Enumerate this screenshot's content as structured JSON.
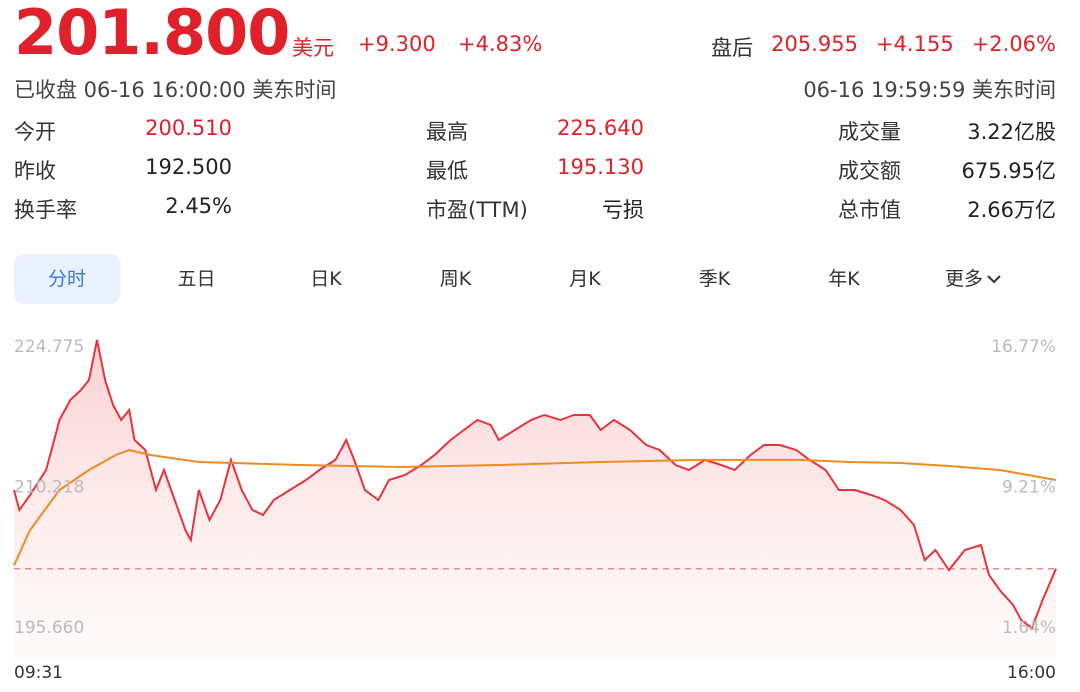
{
  "header": {
    "price": "201.800",
    "currency": "美元",
    "change": "+9.300",
    "change_pct": "+4.83%",
    "status": "已收盘 06-16 16:00:00 美东时间",
    "after_hours": {
      "label": "盘后",
      "price": "205.955",
      "change": "+4.155",
      "change_pct": "+2.06%",
      "time": "06-16 19:59:59 美东时间"
    }
  },
  "stats": [
    [
      {
        "label": "今开",
        "value": "200.510"
      },
      {
        "label": "最高",
        "value": "225.640"
      },
      {
        "label": "成交量",
        "value": "3.22亿股"
      }
    ],
    [
      {
        "label": "昨收",
        "value": "192.500"
      },
      {
        "label": "最低",
        "value": "195.130"
      },
      {
        "label": "成交额",
        "value": "675.95亿"
      }
    ],
    [
      {
        "label": "换手率",
        "value": "2.45%"
      },
      {
        "label": "市盈(TTM)",
        "value": "亏损"
      },
      {
        "label": "总市值",
        "value": "2.66万亿"
      }
    ]
  ],
  "tabs": [
    "分时",
    "五日",
    "日K",
    "周K",
    "月K",
    "季K",
    "年K",
    "更多"
  ],
  "chart_data": {
    "type": "line",
    "xlim": [
      0,
      389
    ],
    "xticks": [
      {
        "value": 0,
        "label": "09:31"
      },
      {
        "value": 389,
        "label": "16:00"
      }
    ],
    "ylim": [
      192.86,
      227.57
    ],
    "yticks": [
      {
        "value": 195.66,
        "label": "195.660"
      },
      210.218,
      224.775
    ],
    "y2lim": [
      0.19,
      18.22
    ],
    "y2ticks": [
      {
        "value": 1.64,
        "label": "1.64%"
      },
      {
        "value": 9.21,
        "label": "9.21%"
      },
      {
        "value": 16.77,
        "label": "16.77%"
      }
    ],
    "series": [
      {
        "color": "#e8333b",
        "x": [
          0,
          2,
          6,
          12,
          15,
          17,
          21,
          25,
          28,
          31,
          34,
          37,
          40,
          43,
          45,
          49,
          53,
          56,
          60,
          64,
          66,
          69,
          73,
          77,
          81,
          85,
          89,
          93,
          97,
          103,
          109,
          114,
          120,
          124,
          127,
          131,
          136,
          140,
          146,
          152,
          157,
          163,
          168,
          173,
          178,
          181,
          187,
          193,
          198,
          204,
          209,
          215,
          219,
          224,
          230,
          236,
          241,
          247,
          252,
          258,
          264,
          269,
          275,
          280,
          286,
          292,
          297,
          303,
          308,
          314,
          320,
          325,
          331,
          336,
          340,
          344,
          349,
          355,
          361,
          364,
          368,
          373,
          376,
          380,
          384,
          389
        ],
        "values": [
          209.96,
          207.88,
          209.44,
          212.03,
          215.14,
          217.21,
          219.28,
          220.32,
          221.35,
          225.5,
          221.35,
          218.76,
          217.21,
          218.25,
          215.14,
          214.1,
          209.96,
          212.03,
          208.92,
          205.81,
          204.77,
          209.96,
          206.85,
          208.92,
          213.07,
          209.96,
          207.88,
          207.37,
          208.92,
          209.96,
          210.99,
          212.03,
          213.07,
          215.14,
          213.07,
          209.96,
          208.92,
          210.99,
          211.51,
          212.55,
          213.58,
          215.14,
          216.17,
          217.21,
          216.69,
          215.14,
          216.17,
          217.21,
          217.73,
          217.21,
          217.73,
          217.73,
          216.17,
          217.21,
          216.17,
          214.62,
          214.1,
          212.55,
          212.03,
          213.07,
          212.55,
          212.03,
          213.58,
          214.62,
          214.62,
          214.1,
          213.07,
          212.03,
          209.96,
          209.96,
          209.44,
          208.92,
          207.88,
          206.33,
          202.7,
          203.74,
          201.67,
          203.74,
          204.26,
          201.15,
          199.59,
          198.04,
          196.49,
          195.66,
          198.56,
          201.8
        ]
      },
      {
        "color": "#f08a24",
        "x": [
          0,
          6,
          17,
          28,
          38,
          43,
          51,
          69,
          107,
          144,
          181,
          219,
          256,
          293,
          312,
          331,
          349,
          368,
          389
        ],
        "values": [
          202.14,
          205.81,
          209.96,
          212.03,
          213.58,
          214.1,
          213.58,
          212.86,
          212.55,
          212.34,
          212.55,
          212.86,
          213.07,
          213.07,
          212.86,
          212.75,
          212.44,
          212.03,
          210.99
        ]
      }
    ]
  }
}
